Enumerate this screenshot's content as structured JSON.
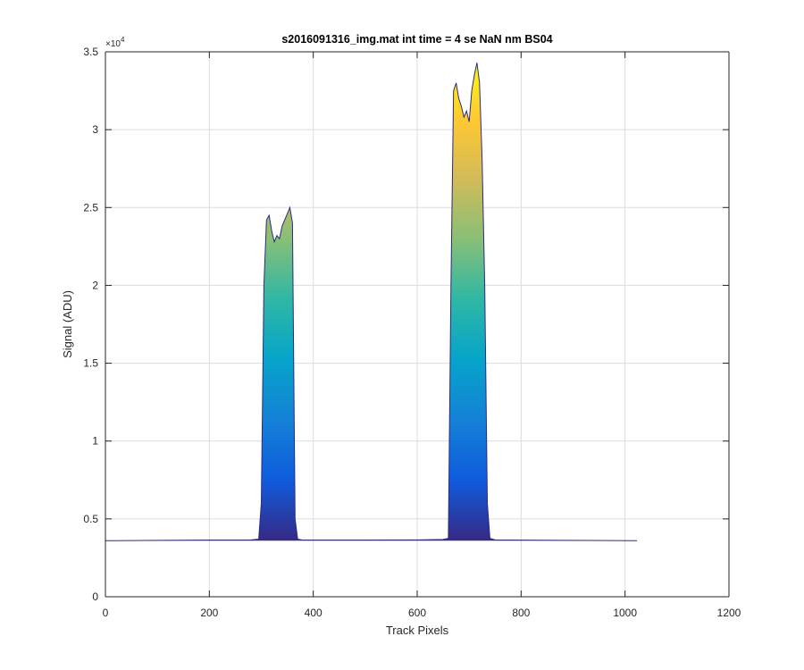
{
  "chart_data": {
    "type": "area",
    "title": "s2016091316_img.mat int time = 4 se  NaN nm BS04",
    "xlabel": "Track Pixels",
    "ylabel": "Signal (ADU)",
    "xlim": [
      0,
      1200
    ],
    "ylim": [
      0,
      35000
    ],
    "y_multiplier_label": "×10",
    "y_multiplier_exponent": "4",
    "x_ticks": [
      0,
      200,
      400,
      600,
      800,
      1000,
      1200
    ],
    "x_tick_labels": [
      "0",
      "200",
      "400",
      "600",
      "800",
      "1000",
      "1200"
    ],
    "y_ticks": [
      0,
      5000,
      10000,
      15000,
      20000,
      25000,
      30000,
      35000
    ],
    "y_tick_labels": [
      "0",
      "0.5",
      "1",
      "1.5",
      "2",
      "2.5",
      "3",
      "3.5"
    ],
    "grid": true,
    "colormap": "parula",
    "colormap_stops": [
      "#352a87",
      "#0f5cdd",
      "#1481d6",
      "#06a4ca",
      "#2eb7a4",
      "#87bf77",
      "#d1bb59",
      "#fec832",
      "#f9fb0e"
    ],
    "line_color": "#2c2a80",
    "series": [
      {
        "x": [
          0,
          100,
          200,
          280,
          295,
          300,
          305,
          310,
          315,
          320,
          325,
          330,
          335,
          340,
          345,
          350,
          355,
          360,
          365,
          370,
          380,
          500,
          600,
          650,
          660,
          665,
          670,
          675,
          680,
          685,
          690,
          695,
          700,
          705,
          710,
          715,
          720,
          725,
          730,
          735,
          740,
          750,
          900,
          1023
        ],
        "y": [
          3600,
          3620,
          3640,
          3650,
          3700,
          6000,
          20000,
          24200,
          24500,
          23500,
          22800,
          23200,
          23000,
          23800,
          24200,
          24600,
          25000,
          24000,
          5000,
          3700,
          3640,
          3640,
          3650,
          3680,
          3750,
          20000,
          32500,
          33000,
          32000,
          31500,
          30800,
          31200,
          30500,
          32500,
          33500,
          34300,
          33000,
          28000,
          20000,
          6000,
          3750,
          3650,
          3620,
          3600
        ]
      }
    ]
  }
}
